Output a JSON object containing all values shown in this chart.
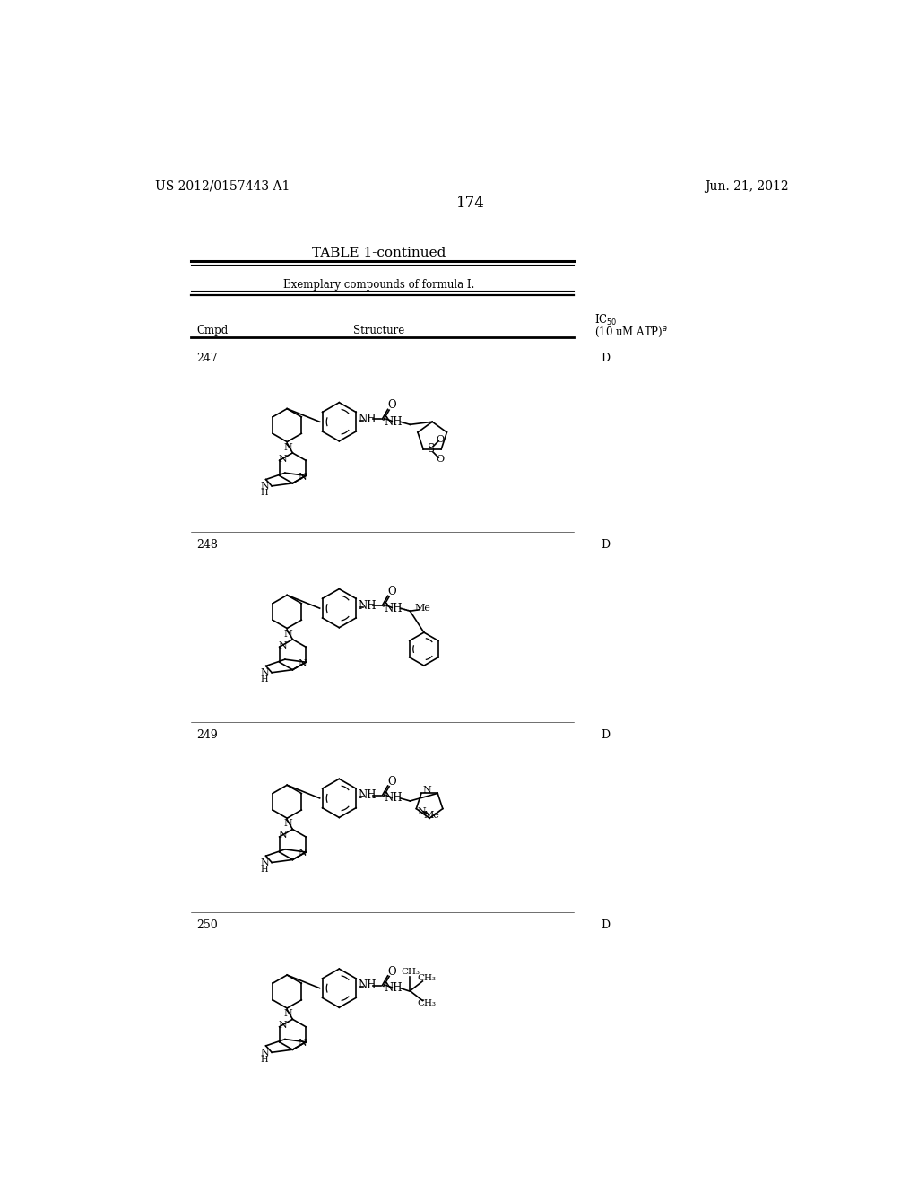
{
  "background_color": "#ffffff",
  "page_number": "174",
  "top_left_text": "US 2012/0157443 A1",
  "top_right_text": "Jun. 21, 2012",
  "table_title": "TABLE 1-continued",
  "table_subtitle": "Exemplary compounds of formula I.",
  "col1_header": "Cmpd",
  "col2_header": "Structure",
  "col3_header_line1": "IC",
  "col3_header_line2": "(10 uM ATP)",
  "compounds": [
    {
      "id": "247",
      "ic50": "D"
    },
    {
      "id": "248",
      "ic50": "D"
    },
    {
      "id": "249",
      "ic50": "D"
    },
    {
      "id": "250",
      "ic50": "D"
    }
  ]
}
